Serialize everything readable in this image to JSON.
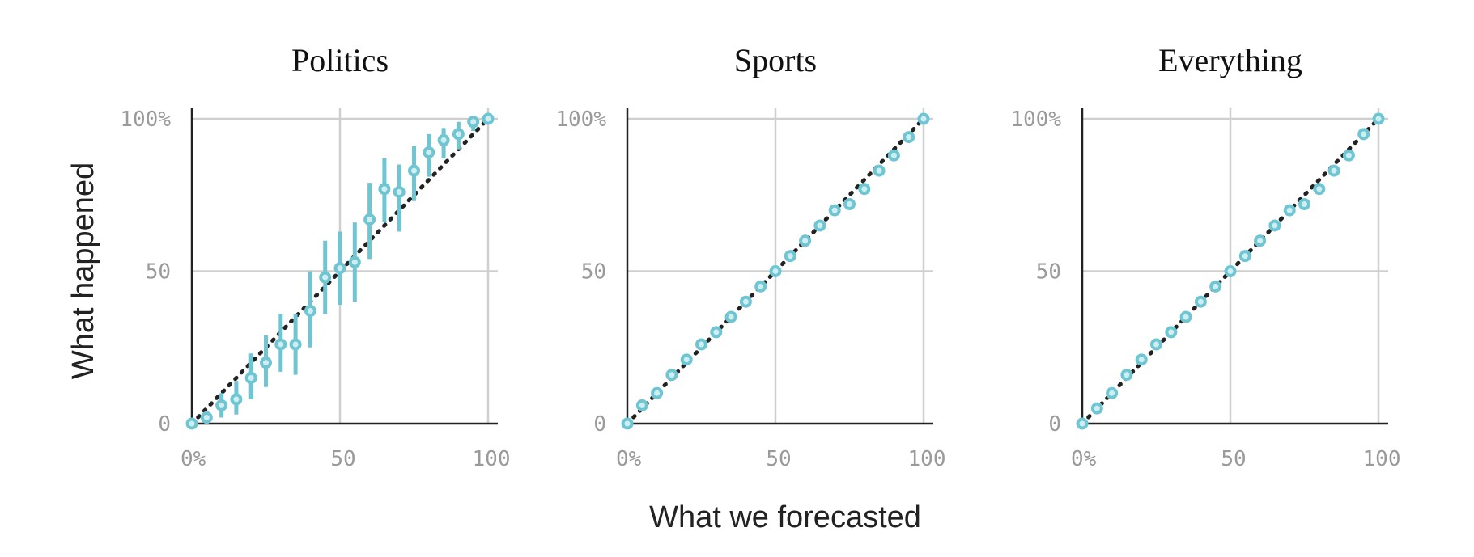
{
  "figure": {
    "xlabel": "What we forecasted",
    "ylabel": "What happened"
  },
  "colors": {
    "point": "#6fc6d2",
    "point_fill": "#cfeef2",
    "diagonal": "#222222",
    "grid": "#cfcfcf",
    "tick_text": "#9a9a9a"
  },
  "chart_data": [
    {
      "type": "scatter",
      "title": "Politics",
      "xlim": [
        0,
        100
      ],
      "ylim": [
        0,
        100
      ],
      "xticks": [
        "0%",
        "50",
        "100"
      ],
      "yticks": [
        "0",
        "50",
        "100%"
      ],
      "grid": true,
      "reference_line": "y=x",
      "x": [
        0,
        5,
        10,
        15,
        20,
        25,
        30,
        35,
        40,
        45,
        50,
        55,
        60,
        65,
        70,
        75,
        80,
        85,
        90,
        95,
        100
      ],
      "y": [
        0,
        2,
        6,
        8,
        15,
        20,
        26,
        26,
        37,
        48,
        51,
        53,
        67,
        77,
        76,
        83,
        89,
        93,
        95,
        99,
        100
      ],
      "y_low": [
        0,
        0,
        2,
        3,
        8,
        12,
        17,
        16,
        25,
        36,
        39,
        40,
        54,
        66,
        63,
        73,
        81,
        87,
        90,
        96,
        100
      ],
      "y_high": [
        0,
        4,
        10,
        14,
        23,
        29,
        36,
        36,
        50,
        60,
        63,
        66,
        79,
        87,
        85,
        91,
        95,
        97,
        99,
        100,
        100
      ]
    },
    {
      "type": "scatter",
      "title": "Sports",
      "xlim": [
        0,
        100
      ],
      "ylim": [
        0,
        100
      ],
      "xticks": [
        "0%",
        "50",
        "100"
      ],
      "yticks": [
        "0",
        "50",
        "100%"
      ],
      "grid": true,
      "reference_line": "y=x",
      "x": [
        0,
        5,
        10,
        15,
        20,
        25,
        30,
        35,
        40,
        45,
        50,
        55,
        60,
        65,
        70,
        75,
        80,
        85,
        90,
        95,
        100
      ],
      "y": [
        0,
        6,
        10,
        16,
        21,
        26,
        30,
        35,
        40,
        45,
        50,
        55,
        60,
        65,
        70,
        72,
        77,
        83,
        88,
        94,
        100
      ]
    },
    {
      "type": "scatter",
      "title": "Everything",
      "xlim": [
        0,
        100
      ],
      "ylim": [
        0,
        100
      ],
      "xticks": [
        "0%",
        "50",
        "100"
      ],
      "yticks": [
        "0",
        "50",
        "100%"
      ],
      "grid": true,
      "reference_line": "y=x",
      "x": [
        0,
        5,
        10,
        15,
        20,
        25,
        30,
        35,
        40,
        45,
        50,
        55,
        60,
        65,
        70,
        75,
        80,
        85,
        90,
        95,
        100
      ],
      "y": [
        0,
        5,
        10,
        16,
        21,
        26,
        30,
        35,
        40,
        45,
        50,
        55,
        60,
        65,
        70,
        72,
        77,
        83,
        88,
        95,
        100
      ]
    }
  ]
}
